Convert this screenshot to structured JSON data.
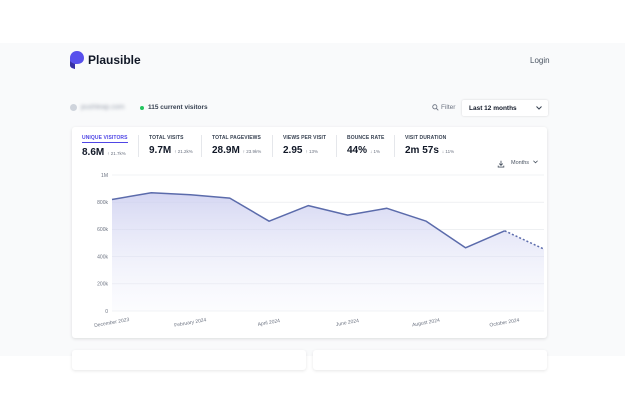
{
  "header": {
    "logo_text": "Plausible",
    "login_label": "Login"
  },
  "site": {
    "domain": "pushleap.com",
    "current_visitors": "115 current visitors"
  },
  "controls": {
    "filter_label": "Filter",
    "period_label": "Last 12 months",
    "interval_label": "Months"
  },
  "metrics": [
    {
      "label": "UNIQUE VISITORS",
      "value": "8.6M",
      "change": "↑ 21.7k%"
    },
    {
      "label": "TOTAL VISITS",
      "value": "9.7M",
      "change": "↑ 21.2k%"
    },
    {
      "label": "TOTAL PAGEVIEWS",
      "value": "28.9M",
      "change": "↑ 23.9k%"
    },
    {
      "label": "VIEWS PER VISIT",
      "value": "2.95",
      "change": "↑ 13%"
    },
    {
      "label": "BOUNCE RATE",
      "value": "44%",
      "change": "↓ 1%"
    },
    {
      "label": "VISIT DURATION",
      "value": "2m 57s",
      "change": "↓ 11%"
    }
  ],
  "colors": {
    "accent": "#4f46e5",
    "line": "#5b6bab",
    "live_dot": "#22c55e"
  },
  "chart_data": {
    "type": "line",
    "series": [
      {
        "x": [
          "December 2023",
          "January 2024",
          "February 2024",
          "March 2024",
          "April 2024",
          "May 2024",
          "June 2024",
          "July 2024",
          "August 2024",
          "September 2024",
          "October 2024",
          "November 2024"
        ],
        "values": [
          820000,
          870000,
          855000,
          830000,
          660000,
          775000,
          705000,
          755000,
          660000,
          465000,
          590000,
          455000
        ],
        "dashed_from_index": 10
      }
    ],
    "ylim": [
      0,
      1000000
    ],
    "yticks": [
      "0",
      "200k",
      "400k",
      "600k",
      "800k",
      "1M"
    ],
    "xticks": [
      {
        "index": 0,
        "label": "December 2023"
      },
      {
        "index": 2,
        "label": "February 2024"
      },
      {
        "index": 4,
        "label": "April 2024"
      },
      {
        "index": 6,
        "label": "June 2024"
      },
      {
        "index": 8,
        "label": "August 2024"
      },
      {
        "index": 10,
        "label": "October 2024"
      }
    ],
    "grid": true
  }
}
